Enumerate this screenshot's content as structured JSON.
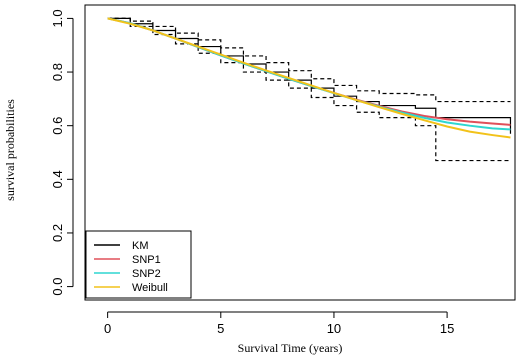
{
  "chart_data": {
    "type": "line",
    "xlabel": "Survival Time (years)",
    "ylabel": "survival probabilities",
    "xlim": [
      -1,
      18
    ],
    "ylim": [
      -0.05,
      1.05
    ],
    "xticks": [
      0,
      5,
      10,
      15
    ],
    "yticks": [
      0.0,
      0.2,
      0.4,
      0.6,
      0.8,
      1.0
    ],
    "ytick_labels": [
      "0.0",
      "0.2",
      "0.4",
      "0.6",
      "0.8",
      "1.0"
    ],
    "legend": {
      "position": "bottom-left",
      "entries": [
        "KM",
        "SNP1",
        "SNP2",
        "Weibull"
      ]
    },
    "series": [
      {
        "name": "KM",
        "style": "step",
        "color": "#000000",
        "x": [
          0,
          1,
          2,
          3,
          4,
          5,
          6,
          7,
          8,
          9,
          10,
          11,
          12,
          13.6,
          14.5,
          17.8
        ],
        "y": [
          1.0,
          0.98,
          0.955,
          0.925,
          0.895,
          0.86,
          0.83,
          0.8,
          0.77,
          0.74,
          0.71,
          0.69,
          0.675,
          0.665,
          0.63,
          0.57
        ]
      },
      {
        "name": "KM lower",
        "style": "dashed-step",
        "color": "#000000",
        "x": [
          0,
          1,
          2,
          3,
          4,
          5,
          6,
          7,
          8,
          9,
          10,
          11,
          12,
          13.6,
          14.5,
          17.8
        ],
        "y": [
          1.0,
          0.97,
          0.94,
          0.905,
          0.87,
          0.835,
          0.8,
          0.77,
          0.74,
          0.705,
          0.675,
          0.65,
          0.63,
          0.6,
          0.47,
          0.47
        ]
      },
      {
        "name": "KM upper",
        "style": "dashed-step",
        "color": "#000000",
        "x": [
          0,
          1,
          2,
          3,
          4,
          5,
          6,
          7,
          8,
          9,
          10,
          11,
          12,
          13.6,
          14.5,
          17.8
        ],
        "y": [
          1.0,
          0.99,
          0.97,
          0.945,
          0.92,
          0.89,
          0.86,
          0.835,
          0.805,
          0.775,
          0.75,
          0.73,
          0.72,
          0.715,
          0.69,
          0.69
        ]
      },
      {
        "name": "SNP1",
        "color": "#e0505a",
        "x": [
          0,
          1,
          2,
          3,
          4,
          5,
          6,
          7,
          8,
          9,
          10,
          11,
          12,
          13,
          14,
          15,
          16,
          17,
          17.8
        ],
        "y": [
          1.0,
          0.982,
          0.955,
          0.925,
          0.893,
          0.862,
          0.832,
          0.803,
          0.775,
          0.748,
          0.722,
          0.697,
          0.674,
          0.653,
          0.636,
          0.624,
          0.615,
          0.608,
          0.603
        ]
      },
      {
        "name": "SNP2",
        "color": "#2fd6d0",
        "x": [
          0,
          1,
          2,
          3,
          4,
          5,
          6,
          7,
          8,
          9,
          10,
          11,
          12,
          13,
          14,
          15,
          16,
          17,
          17.8
        ],
        "y": [
          1.0,
          0.982,
          0.955,
          0.925,
          0.893,
          0.862,
          0.832,
          0.803,
          0.775,
          0.748,
          0.721,
          0.695,
          0.671,
          0.649,
          0.629,
          0.612,
          0.6,
          0.59,
          0.586
        ]
      },
      {
        "name": "Weibull",
        "color": "#f2c21a",
        "x": [
          0,
          1,
          2,
          3,
          4,
          5,
          6,
          7,
          8,
          9,
          10,
          11,
          12,
          13,
          14,
          15,
          16,
          17,
          17.8
        ],
        "y": [
          1.0,
          0.98,
          0.955,
          0.925,
          0.895,
          0.865,
          0.835,
          0.806,
          0.778,
          0.75,
          0.722,
          0.695,
          0.669,
          0.644,
          0.62,
          0.597,
          0.578,
          0.565,
          0.556
        ]
      }
    ]
  }
}
